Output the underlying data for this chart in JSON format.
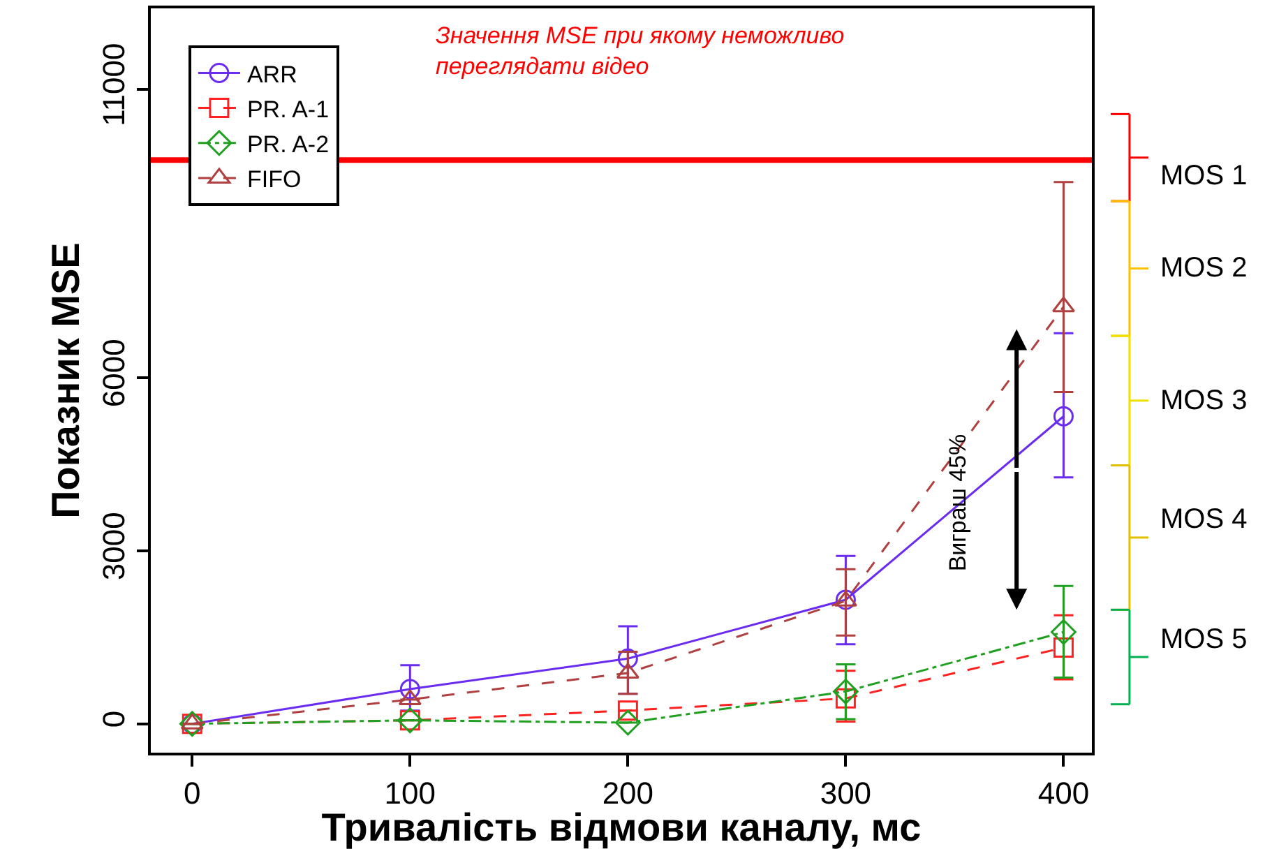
{
  "chart_data": {
    "type": "line",
    "xlabel": "Тривалість відмови каналу, мс",
    "ylabel": "Показник MSE",
    "x": [
      0,
      100,
      200,
      300,
      400
    ],
    "series": [
      {
        "name": "ARR",
        "color": "#6a2cf0",
        "marker": "circle",
        "line_style": "solid",
        "values": [
          0,
          600,
          1130,
          2150,
          5330
        ],
        "errors": [
          null,
          [
            230,
            1015
          ],
          [
            520,
            1690
          ],
          [
            1380,
            2910
          ],
          [
            4270,
            6770
          ]
        ]
      },
      {
        "name": "PR. A-1",
        "color": "#ff2020",
        "marker": "square",
        "line_style": "dashed",
        "values": [
          0,
          60,
          230,
          440,
          1320
        ],
        "errors": [
          null,
          null,
          null,
          [
            40,
            920
          ],
          [
            770,
            1880
          ]
        ]
      },
      {
        "name": "PR. A-2",
        "color": "#20a020",
        "marker": "diamond",
        "line_style": "dotted",
        "values": [
          0,
          60,
          20,
          560,
          1590
        ],
        "errors": [
          null,
          null,
          null,
          [
            80,
            1030
          ],
          [
            800,
            2390
          ]
        ]
      },
      {
        "name": "FIFO",
        "color": "#b04040",
        "marker": "triangle",
        "line_style": "dashed",
        "values": [
          0,
          420,
          880,
          2130,
          7230
        ],
        "errors": [
          null,
          null,
          [
            520,
            1250
          ],
          [
            1530,
            2680
          ],
          [
            5750,
            9390
          ]
        ]
      }
    ],
    "xlim": [
      -19,
      413
    ],
    "xticks": [
      0,
      100,
      200,
      300,
      400
    ],
    "ylim": [
      -500,
      12400
    ],
    "yticks": [
      0,
      3000,
      6000,
      11000
    ],
    "legend": "top left",
    "ref_lines": [
      {
        "axis": "y",
        "value": 9770,
        "label": "Значення MSE при якому неможливо переглядати відео",
        "color": "#ff0000"
      }
    ],
    "annotations": [
      "Виграш 45%",
      "MOS 1",
      "MOS 2",
      "MOS 3",
      "MOS 4",
      "MOS 5"
    ]
  }
}
